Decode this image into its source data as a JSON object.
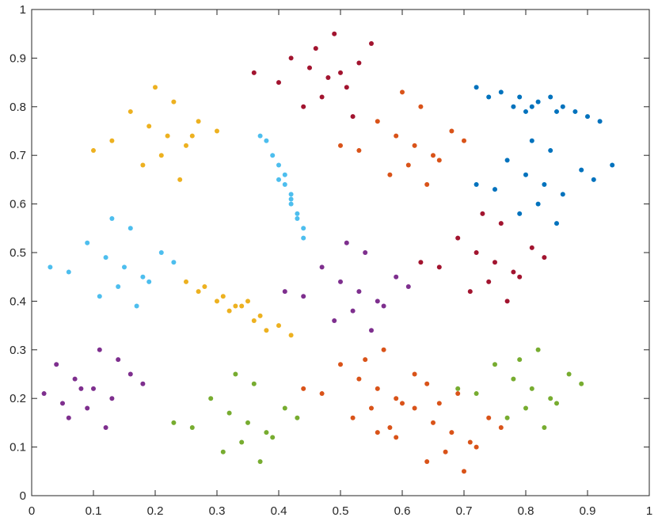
{
  "chart_data": {
    "type": "scatter",
    "xlim": [
      0,
      1
    ],
    "ylim": [
      0,
      1
    ],
    "xticks": [
      0,
      0.1,
      0.2,
      0.3,
      0.4,
      0.5,
      0.6,
      0.7,
      0.8,
      0.9,
      1
    ],
    "yticks": [
      0,
      0.1,
      0.2,
      0.3,
      0.4,
      0.5,
      0.6,
      0.7,
      0.8,
      0.9,
      1
    ],
    "series": [
      {
        "color": "#A2142F",
        "x": [
          0.48,
          0.45,
          0.51,
          0.42,
          0.53,
          0.47,
          0.4,
          0.55,
          0.49,
          0.44,
          0.36,
          0.52,
          0.46,
          0.5
        ],
        "values": [
          0.86,
          0.88,
          0.84,
          0.9,
          0.89,
          0.82,
          0.85,
          0.93,
          0.95,
          0.8,
          0.87,
          0.78,
          0.92,
          0.87
        ]
      },
      {
        "color": "#EDB120",
        "x": [
          0.22,
          0.19,
          0.25,
          0.16,
          0.27,
          0.21,
          0.13,
          0.3,
          0.23,
          0.18,
          0.24,
          0.1,
          0.2,
          0.26
        ],
        "values": [
          0.74,
          0.76,
          0.72,
          0.79,
          0.77,
          0.7,
          0.73,
          0.75,
          0.81,
          0.68,
          0.65,
          0.71,
          0.84,
          0.74
        ]
      },
      {
        "color": "#D95319",
        "x": [
          0.62,
          0.59,
          0.65,
          0.56,
          0.68,
          0.61,
          0.53,
          0.7,
          0.63,
          0.58,
          0.64,
          0.5,
          0.6,
          0.66
        ],
        "values": [
          0.72,
          0.74,
          0.7,
          0.77,
          0.75,
          0.68,
          0.71,
          0.73,
          0.8,
          0.66,
          0.64,
          0.72,
          0.83,
          0.69
        ]
      },
      {
        "color": "#0072BD",
        "x": [
          0.82,
          0.79,
          0.85,
          0.76,
          0.88,
          0.81,
          0.74,
          0.9,
          0.8,
          0.84,
          0.78,
          0.86,
          0.72,
          0.92
        ],
        "values": [
          0.81,
          0.82,
          0.79,
          0.83,
          0.79,
          0.8,
          0.82,
          0.78,
          0.79,
          0.82,
          0.8,
          0.8,
          0.84,
          0.77
        ]
      },
      {
        "color": "#0072BD",
        "x": [
          0.83,
          0.8,
          0.86,
          0.77,
          0.89,
          0.82,
          0.75,
          0.91,
          0.84,
          0.79,
          0.85,
          0.72,
          0.81,
          0.94
        ],
        "values": [
          0.64,
          0.66,
          0.62,
          0.69,
          0.67,
          0.6,
          0.63,
          0.65,
          0.71,
          0.58,
          0.56,
          0.64,
          0.73,
          0.68
        ]
      },
      {
        "color": "#4DBEEE",
        "x": [
          0.42,
          0.41,
          0.43,
          0.4,
          0.44,
          0.39,
          0.42,
          0.38,
          0.43,
          0.41,
          0.44,
          0.37,
          0.42,
          0.4
        ],
        "values": [
          0.62,
          0.64,
          0.58,
          0.68,
          0.55,
          0.7,
          0.6,
          0.73,
          0.57,
          0.66,
          0.53,
          0.74,
          0.61,
          0.65
        ]
      },
      {
        "color": "#4DBEEE",
        "x": [
          0.15,
          0.12,
          0.18,
          0.09,
          0.21,
          0.14,
          0.06,
          0.23,
          0.16,
          0.11,
          0.17,
          0.03,
          0.13,
          0.19
        ],
        "values": [
          0.47,
          0.49,
          0.45,
          0.52,
          0.5,
          0.43,
          0.46,
          0.48,
          0.55,
          0.41,
          0.39,
          0.47,
          0.57,
          0.44
        ]
      },
      {
        "color": "#A2142F",
        "x": [
          0.75,
          0.72,
          0.78,
          0.69,
          0.81,
          0.74,
          0.66,
          0.83,
          0.76,
          0.71,
          0.77,
          0.63,
          0.73,
          0.79
        ],
        "values": [
          0.48,
          0.5,
          0.46,
          0.53,
          0.51,
          0.44,
          0.47,
          0.49,
          0.56,
          0.42,
          0.4,
          0.48,
          0.58,
          0.45
        ]
      },
      {
        "color": "#EDB120",
        "x": [
          0.34,
          0.31,
          0.37,
          0.28,
          0.4,
          0.33,
          0.25,
          0.42,
          0.35,
          0.3,
          0.36,
          0.27,
          0.32,
          0.38
        ],
        "values": [
          0.39,
          0.41,
          0.37,
          0.43,
          0.35,
          0.39,
          0.44,
          0.33,
          0.4,
          0.4,
          0.36,
          0.42,
          0.38,
          0.34
        ]
      },
      {
        "color": "#7E2F8E",
        "x": [
          0.53,
          0.5,
          0.56,
          0.47,
          0.59,
          0.52,
          0.44,
          0.61,
          0.54,
          0.49,
          0.55,
          0.41,
          0.51,
          0.57
        ],
        "values": [
          0.42,
          0.44,
          0.4,
          0.47,
          0.45,
          0.38,
          0.41,
          0.43,
          0.5,
          0.36,
          0.34,
          0.42,
          0.52,
          0.39
        ]
      },
      {
        "color": "#7E2F8E",
        "x": [
          0.1,
          0.07,
          0.13,
          0.04,
          0.16,
          0.09,
          0.02,
          0.18,
          0.11,
          0.06,
          0.12,
          0.08,
          0.14,
          0.05
        ],
        "values": [
          0.22,
          0.24,
          0.2,
          0.27,
          0.25,
          0.18,
          0.21,
          0.23,
          0.3,
          0.16,
          0.14,
          0.22,
          0.28,
          0.19
        ]
      },
      {
        "color": "#77AC30",
        "x": [
          0.35,
          0.32,
          0.38,
          0.29,
          0.41,
          0.34,
          0.26,
          0.43,
          0.36,
          0.31,
          0.37,
          0.23,
          0.33,
          0.39
        ],
        "values": [
          0.15,
          0.17,
          0.13,
          0.2,
          0.18,
          0.11,
          0.14,
          0.16,
          0.23,
          0.09,
          0.07,
          0.15,
          0.25,
          0.12
        ]
      },
      {
        "color": "#D95319",
        "x": [
          0.56,
          0.53,
          0.59,
          0.5,
          0.62,
          0.55,
          0.47,
          0.64,
          0.57,
          0.52,
          0.58,
          0.44,
          0.54,
          0.6
        ],
        "values": [
          0.22,
          0.24,
          0.2,
          0.27,
          0.25,
          0.18,
          0.21,
          0.23,
          0.3,
          0.16,
          0.14,
          0.22,
          0.28,
          0.19
        ]
      },
      {
        "color": "#D95319",
        "x": [
          0.68,
          0.65,
          0.71,
          0.62,
          0.74,
          0.67,
          0.59,
          0.76,
          0.69,
          0.64,
          0.7,
          0.56,
          0.66,
          0.72
        ],
        "values": [
          0.13,
          0.15,
          0.11,
          0.18,
          0.16,
          0.09,
          0.12,
          0.14,
          0.21,
          0.07,
          0.05,
          0.13,
          0.19,
          0.1
        ]
      },
      {
        "color": "#77AC30",
        "x": [
          0.81,
          0.78,
          0.84,
          0.75,
          0.87,
          0.8,
          0.72,
          0.89,
          0.82,
          0.77,
          0.83,
          0.69,
          0.79,
          0.85
        ],
        "values": [
          0.22,
          0.24,
          0.2,
          0.27,
          0.25,
          0.18,
          0.21,
          0.23,
          0.3,
          0.16,
          0.14,
          0.22,
          0.28,
          0.19
        ]
      }
    ]
  }
}
